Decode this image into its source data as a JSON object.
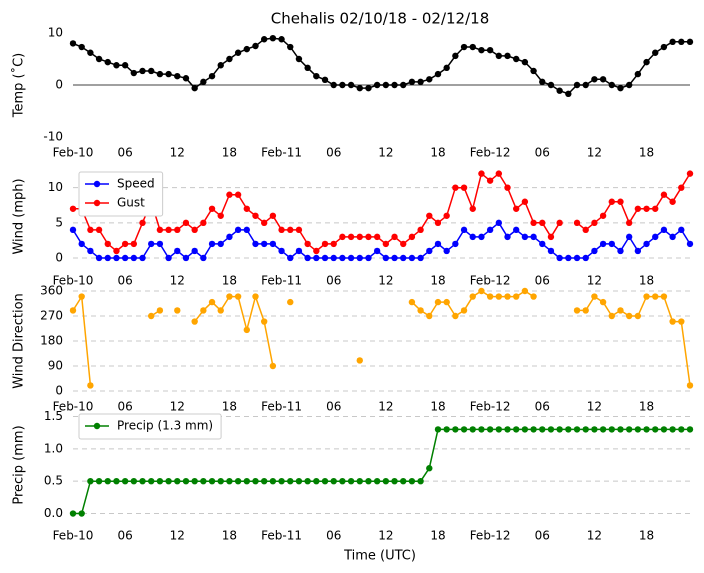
{
  "title": "Chehalis 02/10/18 - 02/12/18",
  "xlabel": "Time (UTC)",
  "chart_data": [
    {
      "type": "line",
      "ylabel": "Temp (˚C)",
      "ylim": [
        -10,
        10
      ],
      "yticks": [
        -10,
        0,
        10
      ],
      "grid": false,
      "hline": 0,
      "color": "#000000",
      "xlim": [
        "2018-02-10T00:00",
        "2018-02-12T23:00"
      ],
      "xticks": [
        {
          "value": "2018-02-10T00:00",
          "label": "Feb-10"
        },
        {
          "value": "2018-02-10T06:00",
          "label": "06"
        },
        {
          "value": "2018-02-10T12:00",
          "label": "12"
        },
        {
          "value": "2018-02-10T18:00",
          "label": "18"
        },
        {
          "value": "2018-02-11T00:00",
          "label": "Feb-11"
        },
        {
          "value": "2018-02-11T06:00",
          "label": "06"
        },
        {
          "value": "2018-02-11T12:00",
          "label": "12"
        },
        {
          "value": "2018-02-11T18:00",
          "label": "18"
        },
        {
          "value": "2018-02-12T00:00",
          "label": "Feb-12"
        },
        {
          "value": "2018-02-12T06:00",
          "label": "06"
        },
        {
          "value": "2018-02-12T12:00",
          "label": "12"
        },
        {
          "value": "2018-02-12T18:00",
          "label": "18"
        }
      ],
      "x": [
        "2018-02-10T00:00",
        "2018-02-10T01:00",
        "2018-02-10T02:00",
        "2018-02-10T03:00",
        "2018-02-10T04:00",
        "2018-02-10T05:00",
        "2018-02-10T06:00",
        "2018-02-10T07:00",
        "2018-02-10T08:00",
        "2018-02-10T09:00",
        "2018-02-10T10:00",
        "2018-02-10T11:00",
        "2018-02-10T12:00",
        "2018-02-10T13:00",
        "2018-02-10T14:00",
        "2018-02-10T15:00",
        "2018-02-10T16:00",
        "2018-02-10T17:00",
        "2018-02-10T18:00",
        "2018-02-10T19:00",
        "2018-02-10T20:00",
        "2018-02-10T21:00",
        "2018-02-10T22:00",
        "2018-02-10T23:00",
        "2018-02-11T00:00",
        "2018-02-11T01:00",
        "2018-02-11T02:00",
        "2018-02-11T03:00",
        "2018-02-11T04:00",
        "2018-02-11T05:00",
        "2018-02-11T06:00",
        "2018-02-11T07:00",
        "2018-02-11T08:00",
        "2018-02-11T09:00",
        "2018-02-11T10:00",
        "2018-02-11T11:00",
        "2018-02-11T12:00",
        "2018-02-11T13:00",
        "2018-02-11T14:00",
        "2018-02-11T15:00",
        "2018-02-11T16:00",
        "2018-02-11T17:00",
        "2018-02-11T18:00",
        "2018-02-11T19:00",
        "2018-02-11T20:00",
        "2018-02-11T21:00",
        "2018-02-11T22:00",
        "2018-02-11T23:00",
        "2018-02-12T00:00",
        "2018-02-12T01:00",
        "2018-02-12T02:00",
        "2018-02-12T03:00",
        "2018-02-12T04:00",
        "2018-02-12T05:00",
        "2018-02-12T06:00",
        "2018-02-12T07:00",
        "2018-02-12T08:00",
        "2018-02-12T09:00",
        "2018-02-12T10:00",
        "2018-02-12T11:00",
        "2018-02-12T12:00",
        "2018-02-12T13:00",
        "2018-02-12T14:00",
        "2018-02-12T15:00",
        "2018-02-12T16:00",
        "2018-02-12T17:00",
        "2018-02-12T18:00",
        "2018-02-12T19:00",
        "2018-02-12T20:00",
        "2018-02-12T21:00",
        "2018-02-12T22:00",
        "2018-02-12T23:00"
      ],
      "values": [
        8,
        7.3,
        6.2,
        5,
        4.4,
        3.8,
        3.8,
        2.3,
        2.7,
        2.7,
        2.1,
        2.1,
        1.7,
        1.3,
        -0.6,
        0.6,
        1.7,
        3.8,
        5,
        6.2,
        6.9,
        7.5,
        8.8,
        9,
        8.8,
        7.3,
        5,
        3.3,
        1.7,
        1,
        0,
        0,
        0,
        -0.6,
        -0.6,
        0,
        0,
        0,
        0,
        0.6,
        0.6,
        1.1,
        2.1,
        3.3,
        5.6,
        7.3,
        7.3,
        6.7,
        6.7,
        5.6,
        5.6,
        5,
        4.4,
        2.7,
        0.6,
        0,
        -1.1,
        -1.7,
        0,
        0,
        1.1,
        1.1,
        0,
        -0.6,
        0,
        2.1,
        4.4,
        6.2,
        7.3,
        8.3,
        8.3,
        8.3
      ]
    },
    {
      "type": "line",
      "ylabel": "Wind (mph)",
      "ylim": [
        -1,
        12.8
      ],
      "yticks": [
        0,
        5,
        10
      ],
      "grid": true,
      "legend": "upper left",
      "xlim": [
        "2018-02-10T00:00",
        "2018-02-12T23:00"
      ],
      "xticks": [
        {
          "value": "2018-02-10T00:00",
          "label": "Feb-10"
        },
        {
          "value": "2018-02-10T06:00",
          "label": "06"
        },
        {
          "value": "2018-02-10T12:00",
          "label": "12"
        },
        {
          "value": "2018-02-10T18:00",
          "label": "18"
        },
        {
          "value": "2018-02-11T00:00",
          "label": "Feb-11"
        },
        {
          "value": "2018-02-11T06:00",
          "label": "06"
        },
        {
          "value": "2018-02-11T12:00",
          "label": "12"
        },
        {
          "value": "2018-02-11T18:00",
          "label": "18"
        },
        {
          "value": "2018-02-12T00:00",
          "label": "Feb-12"
        },
        {
          "value": "2018-02-12T06:00",
          "label": "06"
        },
        {
          "value": "2018-02-12T12:00",
          "label": "12"
        },
        {
          "value": "2018-02-12T18:00",
          "label": "18"
        }
      ],
      "x": [
        "2018-02-10T00:00",
        "2018-02-10T01:00",
        "2018-02-10T02:00",
        "2018-02-10T03:00",
        "2018-02-10T04:00",
        "2018-02-10T05:00",
        "2018-02-10T06:00",
        "2018-02-10T07:00",
        "2018-02-10T08:00",
        "2018-02-10T09:00",
        "2018-02-10T10:00",
        "2018-02-10T11:00",
        "2018-02-10T12:00",
        "2018-02-10T13:00",
        "2018-02-10T14:00",
        "2018-02-10T15:00",
        "2018-02-10T16:00",
        "2018-02-10T17:00",
        "2018-02-10T18:00",
        "2018-02-10T19:00",
        "2018-02-10T20:00",
        "2018-02-10T21:00",
        "2018-02-10T22:00",
        "2018-02-10T23:00",
        "2018-02-11T00:00",
        "2018-02-11T01:00",
        "2018-02-11T02:00",
        "2018-02-11T03:00",
        "2018-02-11T04:00",
        "2018-02-11T05:00",
        "2018-02-11T06:00",
        "2018-02-11T07:00",
        "2018-02-11T08:00",
        "2018-02-11T09:00",
        "2018-02-11T10:00",
        "2018-02-11T11:00",
        "2018-02-11T12:00",
        "2018-02-11T13:00",
        "2018-02-11T14:00",
        "2018-02-11T15:00",
        "2018-02-11T16:00",
        "2018-02-11T17:00",
        "2018-02-11T18:00",
        "2018-02-11T19:00",
        "2018-02-11T20:00",
        "2018-02-11T21:00",
        "2018-02-11T22:00",
        "2018-02-11T23:00",
        "2018-02-12T00:00",
        "2018-02-12T01:00",
        "2018-02-12T02:00",
        "2018-02-12T03:00",
        "2018-02-12T04:00",
        "2018-02-12T05:00",
        "2018-02-12T06:00",
        "2018-02-12T07:00",
        "2018-02-12T08:00",
        "2018-02-12T09:00",
        "2018-02-12T10:00",
        "2018-02-12T11:00",
        "2018-02-12T12:00",
        "2018-02-12T13:00",
        "2018-02-12T14:00",
        "2018-02-12T15:00",
        "2018-02-12T16:00",
        "2018-02-12T17:00",
        "2018-02-12T18:00",
        "2018-02-12T19:00",
        "2018-02-12T20:00",
        "2018-02-12T21:00",
        "2018-02-12T22:00",
        "2018-02-12T23:00"
      ],
      "series": [
        {
          "name": "Speed",
          "color": "#0000ff",
          "values": [
            4,
            2,
            1,
            0,
            0,
            0,
            0,
            0,
            0,
            2,
            2,
            0,
            1,
            0,
            1,
            0,
            2,
            2,
            3,
            4,
            4,
            2,
            2,
            2,
            1,
            0,
            1,
            0,
            0,
            0,
            0,
            0,
            0,
            0,
            0,
            1,
            0,
            0,
            0,
            0,
            0,
            1,
            2,
            1,
            2,
            4,
            3,
            3,
            4,
            5,
            3,
            4,
            3,
            3,
            2,
            1,
            0,
            0,
            0,
            0,
            1,
            2,
            2,
            1,
            3,
            1,
            2,
            3,
            4,
            3,
            4,
            2
          ]
        },
        {
          "name": "Gust",
          "color": "#ff0000",
          "values": [
            7,
            7,
            4,
            4,
            2,
            1,
            2,
            2,
            5,
            8,
            4,
            4,
            4,
            5,
            4,
            5,
            7,
            6,
            9,
            9,
            7,
            6,
            5,
            6,
            4,
            4,
            4,
            2,
            1,
            2,
            2,
            3,
            3,
            3,
            3,
            3,
            2,
            3,
            2,
            3,
            4,
            6,
            5,
            6,
            10,
            10,
            7,
            12,
            11,
            12,
            10,
            7,
            8,
            5,
            5,
            3,
            5,
            null,
            5,
            4,
            5,
            6,
            8,
            8,
            5,
            7,
            7,
            7,
            9,
            8,
            10,
            12
          ]
        }
      ]
    },
    {
      "type": "line",
      "ylabel": "Wind Direction",
      "ylim": [
        0,
        360
      ],
      "yticks": [
        0,
        90,
        180,
        270,
        360
      ],
      "grid": true,
      "color": "#ffa500",
      "xlim": [
        "2018-02-10T00:00",
        "2018-02-12T23:00"
      ],
      "xticks": [
        {
          "value": "2018-02-10T00:00",
          "label": "Feb-10"
        },
        {
          "value": "2018-02-10T06:00",
          "label": "06"
        },
        {
          "value": "2018-02-10T12:00",
          "label": "12"
        },
        {
          "value": "2018-02-10T18:00",
          "label": "18"
        },
        {
          "value": "2018-02-11T00:00",
          "label": "Feb-11"
        },
        {
          "value": "2018-02-11T06:00",
          "label": "06"
        },
        {
          "value": "2018-02-11T12:00",
          "label": "12"
        },
        {
          "value": "2018-02-11T18:00",
          "label": "18"
        },
        {
          "value": "2018-02-12T00:00",
          "label": "Feb-12"
        },
        {
          "value": "2018-02-12T06:00",
          "label": "06"
        },
        {
          "value": "2018-02-12T12:00",
          "label": "12"
        },
        {
          "value": "2018-02-12T18:00",
          "label": "18"
        }
      ],
      "x": [
        "2018-02-10T00:00",
        "2018-02-10T01:00",
        "2018-02-10T02:00",
        "2018-02-10T03:00",
        "2018-02-10T04:00",
        "2018-02-10T05:00",
        "2018-02-10T06:00",
        "2018-02-10T07:00",
        "2018-02-10T08:00",
        "2018-02-10T09:00",
        "2018-02-10T10:00",
        "2018-02-10T11:00",
        "2018-02-10T12:00",
        "2018-02-10T13:00",
        "2018-02-10T14:00",
        "2018-02-10T15:00",
        "2018-02-10T16:00",
        "2018-02-10T17:00",
        "2018-02-10T18:00",
        "2018-02-10T19:00",
        "2018-02-10T20:00",
        "2018-02-10T21:00",
        "2018-02-10T22:00",
        "2018-02-10T23:00",
        "2018-02-11T00:00",
        "2018-02-11T01:00",
        "2018-02-11T02:00",
        "2018-02-11T03:00",
        "2018-02-11T04:00",
        "2018-02-11T05:00",
        "2018-02-11T06:00",
        "2018-02-11T07:00",
        "2018-02-11T08:00",
        "2018-02-11T09:00",
        "2018-02-11T10:00",
        "2018-02-11T11:00",
        "2018-02-11T12:00",
        "2018-02-11T13:00",
        "2018-02-11T14:00",
        "2018-02-11T15:00",
        "2018-02-11T16:00",
        "2018-02-11T17:00",
        "2018-02-11T18:00",
        "2018-02-11T19:00",
        "2018-02-11T20:00",
        "2018-02-11T21:00",
        "2018-02-11T22:00",
        "2018-02-11T23:00",
        "2018-02-12T00:00",
        "2018-02-12T01:00",
        "2018-02-12T02:00",
        "2018-02-12T03:00",
        "2018-02-12T04:00",
        "2018-02-12T05:00",
        "2018-02-12T06:00",
        "2018-02-12T07:00",
        "2018-02-12T08:00",
        "2018-02-12T09:00",
        "2018-02-12T10:00",
        "2018-02-12T11:00",
        "2018-02-12T12:00",
        "2018-02-12T13:00",
        "2018-02-12T14:00",
        "2018-02-12T15:00",
        "2018-02-12T16:00",
        "2018-02-12T17:00",
        "2018-02-12T18:00",
        "2018-02-12T19:00",
        "2018-02-12T20:00",
        "2018-02-12T21:00",
        "2018-02-12T22:00",
        "2018-02-12T23:00"
      ],
      "values": [
        290,
        340,
        20,
        null,
        null,
        null,
        null,
        null,
        null,
        270,
        290,
        null,
        290,
        null,
        250,
        290,
        320,
        290,
        340,
        340,
        220,
        340,
        250,
        90,
        null,
        320,
        null,
        null,
        null,
        null,
        null,
        null,
        null,
        110,
        null,
        null,
        null,
        null,
        null,
        320,
        290,
        270,
        320,
        320,
        270,
        290,
        340,
        360,
        340,
        340,
        340,
        340,
        360,
        340,
        null,
        null,
        null,
        null,
        290,
        290,
        340,
        320,
        270,
        290,
        270,
        270,
        340,
        340,
        340,
        250,
        250,
        20
      ]
    },
    {
      "type": "line",
      "ylabel": "Precip (mm)",
      "ylim": [
        -0.1,
        1.6
      ],
      "yticks": [
        {
          "value": 0,
          "label": "0.0"
        },
        0.5,
        {
          "value": 1,
          "label": "1.0"
        },
        1.5
      ],
      "grid": true,
      "legend": "upper left",
      "xlim": [
        "2018-02-10T00:00",
        "2018-02-12T23:00"
      ],
      "xticks": [
        {
          "value": "2018-02-10T00:00",
          "label": "Feb-10"
        },
        {
          "value": "2018-02-10T06:00",
          "label": "06"
        },
        {
          "value": "2018-02-10T12:00",
          "label": "12"
        },
        {
          "value": "2018-02-10T18:00",
          "label": "18"
        },
        {
          "value": "2018-02-11T00:00",
          "label": "Feb-11"
        },
        {
          "value": "2018-02-11T06:00",
          "label": "06"
        },
        {
          "value": "2018-02-11T12:00",
          "label": "12"
        },
        {
          "value": "2018-02-11T18:00",
          "label": "18"
        },
        {
          "value": "2018-02-12T00:00",
          "label": "Feb-12"
        },
        {
          "value": "2018-02-12T06:00",
          "label": "06"
        },
        {
          "value": "2018-02-12T12:00",
          "label": "12"
        },
        {
          "value": "2018-02-12T18:00",
          "label": "18"
        }
      ],
      "x": [
        "2018-02-10T00:00",
        "2018-02-10T01:00",
        "2018-02-10T02:00",
        "2018-02-10T03:00",
        "2018-02-10T04:00",
        "2018-02-10T05:00",
        "2018-02-10T06:00",
        "2018-02-10T07:00",
        "2018-02-10T08:00",
        "2018-02-10T09:00",
        "2018-02-10T10:00",
        "2018-02-10T11:00",
        "2018-02-10T12:00",
        "2018-02-10T13:00",
        "2018-02-10T14:00",
        "2018-02-10T15:00",
        "2018-02-10T16:00",
        "2018-02-10T17:00",
        "2018-02-10T18:00",
        "2018-02-10T19:00",
        "2018-02-10T20:00",
        "2018-02-10T21:00",
        "2018-02-10T22:00",
        "2018-02-10T23:00",
        "2018-02-11T00:00",
        "2018-02-11T01:00",
        "2018-02-11T02:00",
        "2018-02-11T03:00",
        "2018-02-11T04:00",
        "2018-02-11T05:00",
        "2018-02-11T06:00",
        "2018-02-11T07:00",
        "2018-02-11T08:00",
        "2018-02-11T09:00",
        "2018-02-11T10:00",
        "2018-02-11T11:00",
        "2018-02-11T12:00",
        "2018-02-11T13:00",
        "2018-02-11T14:00",
        "2018-02-11T15:00",
        "2018-02-11T16:00",
        "2018-02-11T17:00",
        "2018-02-11T18:00",
        "2018-02-11T19:00",
        "2018-02-11T20:00",
        "2018-02-11T21:00",
        "2018-02-11T22:00",
        "2018-02-11T23:00",
        "2018-02-12T00:00",
        "2018-02-12T01:00",
        "2018-02-12T02:00",
        "2018-02-12T03:00",
        "2018-02-12T04:00",
        "2018-02-12T05:00",
        "2018-02-12T06:00",
        "2018-02-12T07:00",
        "2018-02-12T08:00",
        "2018-02-12T09:00",
        "2018-02-12T10:00",
        "2018-02-12T11:00",
        "2018-02-12T12:00",
        "2018-02-12T13:00",
        "2018-02-12T14:00",
        "2018-02-12T15:00",
        "2018-02-12T16:00",
        "2018-02-12T17:00",
        "2018-02-12T18:00",
        "2018-02-12T19:00",
        "2018-02-12T20:00",
        "2018-02-12T21:00",
        "2018-02-12T22:00",
        "2018-02-12T23:00"
      ],
      "series": [
        {
          "name": "Precip (1.3 mm)",
          "color": "#008000",
          "values": [
            0,
            0,
            0.5,
            0.5,
            0.5,
            0.5,
            0.5,
            0.5,
            0.5,
            0.5,
            0.5,
            0.5,
            0.5,
            0.5,
            0.5,
            0.5,
            0.5,
            0.5,
            0.5,
            0.5,
            0.5,
            0.5,
            0.5,
            0.5,
            0.5,
            0.5,
            0.5,
            0.5,
            0.5,
            0.5,
            0.5,
            0.5,
            0.5,
            0.5,
            0.5,
            0.5,
            0.5,
            0.5,
            0.5,
            0.5,
            0.5,
            0.7,
            1.3,
            1.3,
            1.3,
            1.3,
            1.3,
            1.3,
            1.3,
            1.3,
            1.3,
            1.3,
            1.3,
            1.3,
            1.3,
            1.3,
            1.3,
            1.3,
            1.3,
            1.3,
            1.3,
            1.3,
            1.3,
            1.3,
            1.3,
            1.3,
            1.3,
            1.3,
            1.3,
            1.3,
            1.3,
            1.3
          ]
        }
      ]
    }
  ]
}
